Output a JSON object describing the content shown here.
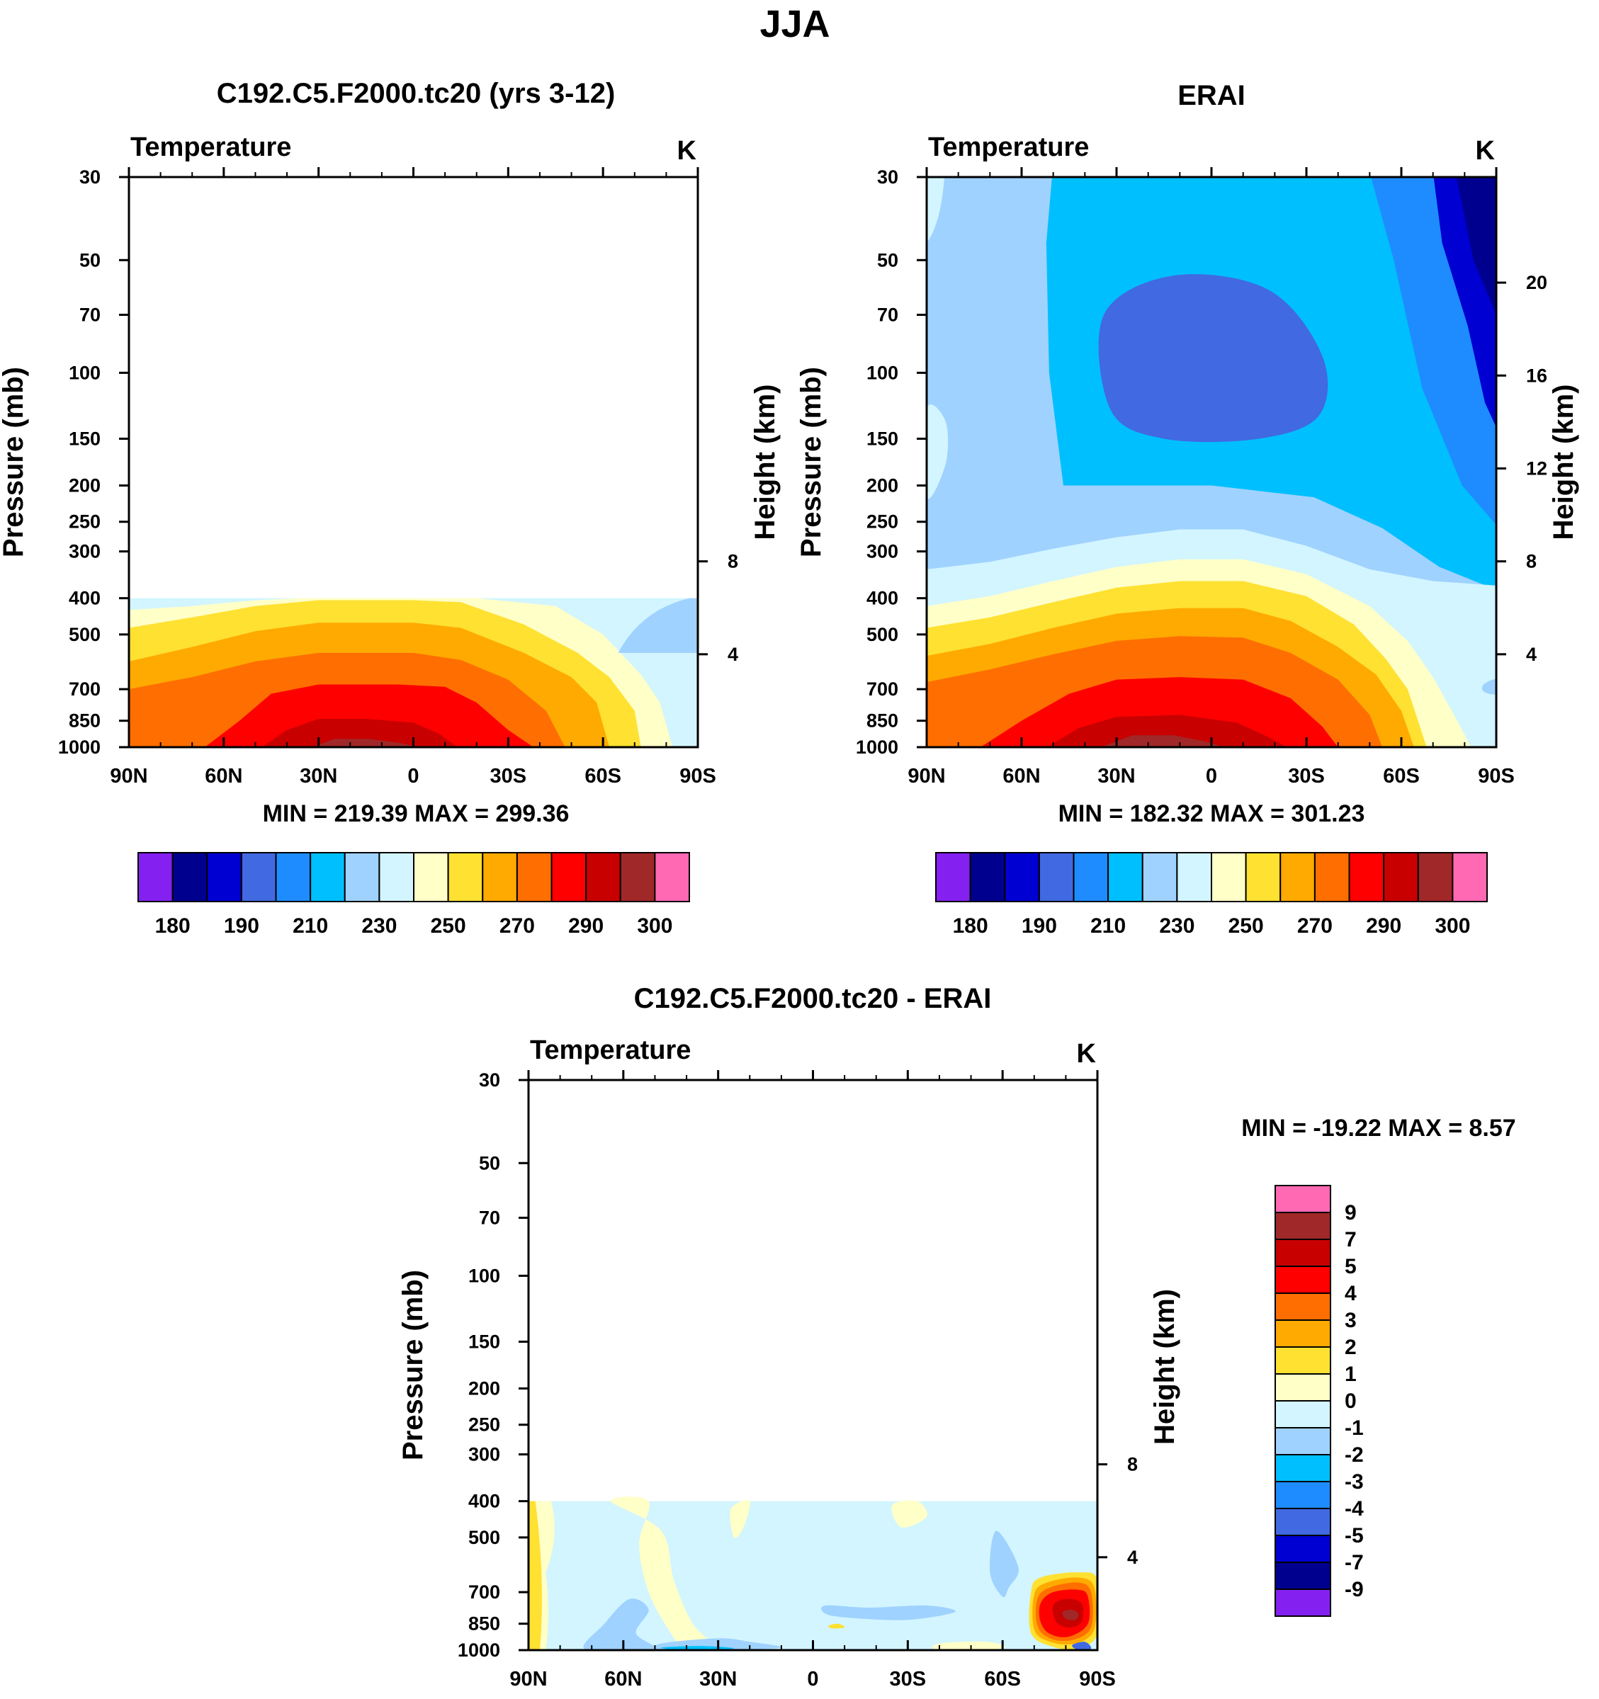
{
  "figure_title": "JJA",
  "chart_data": [
    {
      "type": "filled-contour",
      "panel_title": "C192.C5.F2000.tc20 (yrs 3-12)",
      "subtitle_left": "Temperature",
      "units": "K",
      "ylabel": "Pressure (mb)",
      "ylabel2": "Height (km)",
      "x_ticks": [
        "90N",
        "60N",
        "30N",
        "0",
        "30S",
        "60S",
        "90S"
      ],
      "y_ticks": [
        "30",
        "50",
        "70",
        "100",
        "150",
        "200",
        "250",
        "300",
        "400",
        "500",
        "700",
        "850",
        "1000"
      ],
      "y_ticks_right": [
        "8",
        "4"
      ],
      "ylim_mb": [
        1000,
        30
      ],
      "data_top_mb": 400,
      "stats": "MIN = 219.39  MAX = 299.36",
      "levels": [
        180,
        185,
        190,
        200,
        210,
        220,
        230,
        240,
        250,
        260,
        270,
        280,
        290,
        295,
        300
      ],
      "colorbar_labels": [
        "180",
        "190",
        "210",
        "230",
        "250",
        "270",
        "290",
        "300"
      ]
    },
    {
      "type": "filled-contour",
      "panel_title": "ERAI",
      "subtitle_left": "Temperature",
      "units": "K",
      "ylabel": "Pressure (mb)",
      "ylabel2": "Height (km)",
      "x_ticks": [
        "90N",
        "60N",
        "30N",
        "0",
        "30S",
        "60S",
        "90S"
      ],
      "y_ticks": [
        "30",
        "50",
        "70",
        "100",
        "150",
        "200",
        "250",
        "300",
        "400",
        "500",
        "700",
        "850",
        "1000"
      ],
      "y_ticks_right": [
        "20",
        "16",
        "12",
        "8",
        "4"
      ],
      "ylim_mb": [
        1000,
        30
      ],
      "stats": "MIN = 182.32  MAX = 301.23",
      "levels": [
        180,
        185,
        190,
        200,
        210,
        220,
        230,
        240,
        250,
        260,
        270,
        280,
        290,
        295,
        300
      ],
      "colorbar_labels": [
        "180",
        "190",
        "210",
        "230",
        "250",
        "270",
        "290",
        "300"
      ]
    },
    {
      "type": "filled-contour",
      "panel_title": "C192.C5.F2000.tc20 - ERAI",
      "subtitle_left": "Temperature",
      "units": "K",
      "ylabel": "Pressure (mb)",
      "ylabel2": "Height (km)",
      "x_ticks": [
        "90N",
        "60N",
        "30N",
        "0",
        "30S",
        "60S",
        "90S"
      ],
      "y_ticks": [
        "30",
        "50",
        "70",
        "100",
        "150",
        "200",
        "250",
        "300",
        "400",
        "500",
        "700",
        "850",
        "1000"
      ],
      "y_ticks_right": [
        "8",
        "4"
      ],
      "ylim_mb": [
        1000,
        30
      ],
      "data_top_mb": 400,
      "stats": "MIN = -19.22  MAX =   8.57",
      "levels": [
        -9,
        -7,
        -5,
        -4,
        -3,
        -2,
        -1,
        0,
        1,
        2,
        3,
        4,
        5,
        7,
        9
      ],
      "colorbar_labels": [
        "9",
        "7",
        "5",
        "4",
        "3",
        "2",
        "1",
        "0",
        "-1",
        "-2",
        "-3",
        "-4",
        "-5",
        "-7",
        "-9"
      ]
    }
  ],
  "colors": {
    "palette": [
      "#8421f0",
      "#00008f",
      "#0000d2",
      "#4169e1",
      "#1e8cff",
      "#00bfff",
      "#a0d2ff",
      "#d2f5ff",
      "#ffffc8",
      "#ffe132",
      "#ffaa00",
      "#ff6e00",
      "#ff0000",
      "#c80000",
      "#a02828",
      "#ff69b4"
    ]
  }
}
